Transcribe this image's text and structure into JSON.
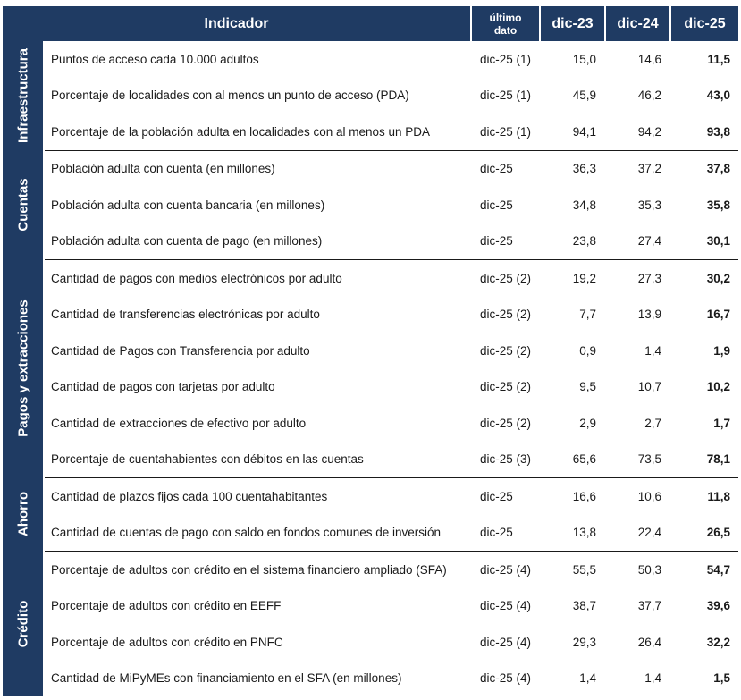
{
  "header": {
    "indicator": "Indicador",
    "last_data": [
      "último",
      "dato"
    ],
    "years": [
      "dic-23",
      "dic-24",
      "dic-25"
    ]
  },
  "groups": [
    {
      "label": "Infraestructura",
      "rows": [
        {
          "name": "Puntos de acceso cada 10.000 adultos",
          "last": "dic-25 (1)",
          "v1": "15,0",
          "v2": "14,6",
          "v3": "11,5"
        },
        {
          "name": "Porcentaje de localidades con al menos un punto de acceso (PDA)",
          "last": "dic-25 (1)",
          "v1": "45,9",
          "v2": "46,2",
          "v3": "43,0"
        },
        {
          "name": "Porcentaje de la población adulta en localidades con al menos un PDA",
          "last": "dic-25 (1)",
          "v1": "94,1",
          "v2": "94,2",
          "v3": "93,8"
        }
      ]
    },
    {
      "label": "Cuentas",
      "rows": [
        {
          "name": "Población adulta con cuenta (en millones)",
          "last": "dic-25",
          "v1": "36,3",
          "v2": "37,2",
          "v3": "37,8"
        },
        {
          "name": "Población adulta con cuenta bancaria (en millones)",
          "last": "dic-25",
          "v1": "34,8",
          "v2": "35,3",
          "v3": "35,8"
        },
        {
          "name": "Población adulta con cuenta de pago (en millones)",
          "last": "dic-25",
          "v1": "23,8",
          "v2": "27,4",
          "v3": "30,1"
        }
      ]
    },
    {
      "label": "Pagos y extracciones",
      "rows": [
        {
          "name": "Cantidad de pagos con medios electrónicos por adulto",
          "last": "dic-25 (2)",
          "v1": "19,2",
          "v2": "27,3",
          "v3": "30,2"
        },
        {
          "name": "Cantidad de transferencias electrónicas por adulto",
          "last": "dic-25 (2)",
          "v1": "7,7",
          "v2": "13,9",
          "v3": "16,7"
        },
        {
          "name": "Cantidad de Pagos con Transferencia por adulto",
          "last": "dic-25 (2)",
          "v1": "0,9",
          "v2": "1,4",
          "v3": "1,9"
        },
        {
          "name": "Cantidad de pagos con tarjetas por adulto",
          "last": "dic-25 (2)",
          "v1": "9,5",
          "v2": "10,7",
          "v3": "10,2"
        },
        {
          "name": "Cantidad de extracciones de efectivo por adulto",
          "last": "dic-25 (2)",
          "v1": "2,9",
          "v2": "2,7",
          "v3": "1,7"
        },
        {
          "name": "Porcentaje de cuentahabientes con débitos en las cuentas",
          "last": "dic-25 (3)",
          "v1": "65,6",
          "v2": "73,5",
          "v3": "78,1"
        }
      ]
    },
    {
      "label": "Ahorro",
      "rows": [
        {
          "name": "Cantidad de plazos fijos cada 100 cuentahabitantes",
          "last": "dic-25",
          "v1": "16,6",
          "v2": "10,6",
          "v3": "11,8"
        },
        {
          "name": "Cantidad de cuentas de pago con saldo en fondos comunes de inversión",
          "last": "dic-25",
          "v1": "13,8",
          "v2": "22,4",
          "v3": "26,5"
        }
      ]
    },
    {
      "label": "Crédito",
      "rows": [
        {
          "name": "Porcentaje de adultos con crédito en el sistema financiero ampliado (SFA)",
          "last": "dic-25 (4)",
          "v1": "55,5",
          "v2": "50,3",
          "v3": "54,7"
        },
        {
          "name": "Porcentaje de adultos con crédito en EEFF",
          "last": "dic-25 (4)",
          "v1": "38,7",
          "v2": "37,7",
          "v3": "39,6"
        },
        {
          "name": "Porcentaje de adultos con crédito en PNFC",
          "last": "dic-25 (4)",
          "v1": "29,3",
          "v2": "26,4",
          "v3": "32,2"
        },
        {
          "name": "Cantidad de MiPyMEs con financiamiento en el SFA (en millones)",
          "last": "dic-25 (4)",
          "v1": "1,4",
          "v2": "1,4",
          "v3": "1,5"
        }
      ]
    }
  ]
}
